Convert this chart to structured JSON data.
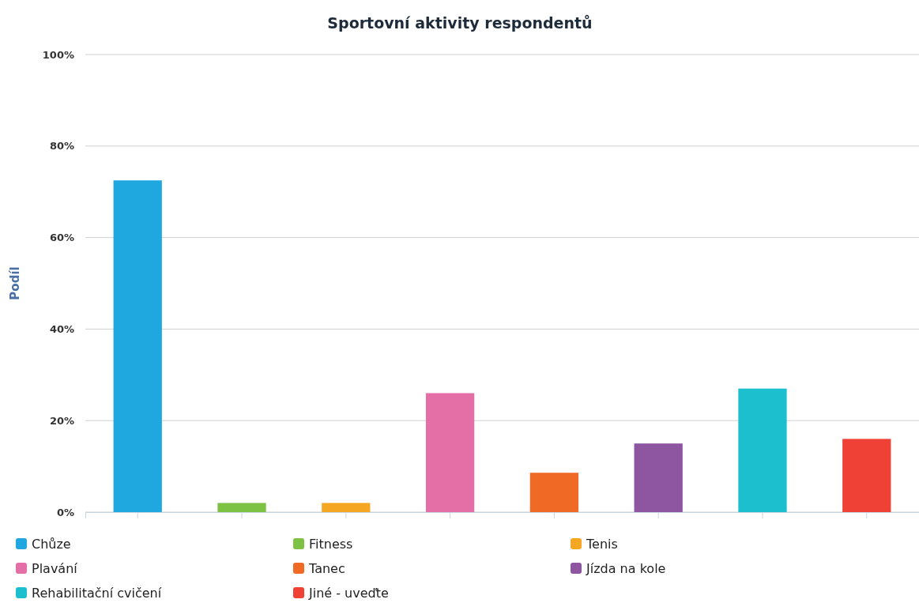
{
  "chart_data": {
    "type": "bar",
    "title": "Sportovní aktivity respondentů",
    "ylabel": "Podíl",
    "categories": [
      null,
      null,
      null,
      null,
      null,
      null,
      null,
      null
    ],
    "series": [
      {
        "name": "Chůze",
        "color": "#1fa8e0",
        "values": [
          72.5,
          null,
          null,
          null,
          null,
          null,
          null,
          null
        ]
      },
      {
        "name": "Fitness",
        "color": "#7dc242",
        "values": [
          null,
          2,
          null,
          null,
          null,
          null,
          null,
          null
        ]
      },
      {
        "name": "Tenis",
        "color": "#f5a623",
        "values": [
          null,
          null,
          2,
          null,
          null,
          null,
          null,
          null
        ]
      },
      {
        "name": "Plavání",
        "color": "#e46fa7",
        "values": [
          null,
          null,
          null,
          26,
          null,
          null,
          null,
          null
        ]
      },
      {
        "name": "Tanec",
        "color": "#f06a25",
        "values": [
          null,
          null,
          null,
          null,
          8.6,
          null,
          null,
          null
        ]
      },
      {
        "name": "Jízda na kole",
        "color": "#8e55a0",
        "values": [
          null,
          null,
          null,
          null,
          null,
          15,
          null,
          null
        ]
      },
      {
        "name": "Rehabilitační cvičení",
        "color": "#1cbfce",
        "values": [
          null,
          null,
          null,
          null,
          null,
          null,
          27,
          null
        ]
      },
      {
        "name": "Jiné - uveďte",
        "color": "#ef4136",
        "values": [
          null,
          null,
          null,
          null,
          null,
          null,
          null,
          16
        ]
      }
    ],
    "ylim": [
      0,
      100
    ],
    "yticks": [
      {
        "value": 0,
        "label": "0%"
      },
      {
        "value": 20,
        "label": "20%"
      },
      {
        "value": 40,
        "label": "40%"
      },
      {
        "value": 60,
        "label": "60%"
      },
      {
        "value": 80,
        "label": "80%"
      },
      {
        "value": 100,
        "label": "100%"
      }
    ],
    "grid": "y",
    "legend": "bottom",
    "tick_labels": "y"
  }
}
